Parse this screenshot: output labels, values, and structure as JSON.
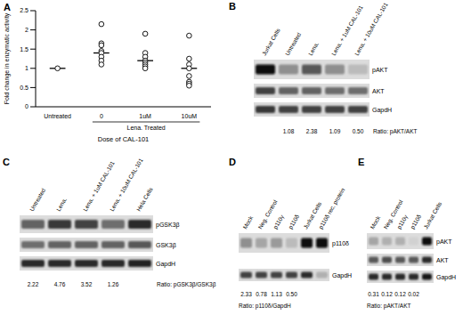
{
  "chart_data": {
    "type": "scatter",
    "title": "A",
    "y_label": "Fold change in enzymatic activity",
    "x_label": "Dose of CAL-101",
    "categories": [
      "Untreated",
      "0",
      "1uM",
      "10uM"
    ],
    "values": [
      [
        1
      ],
      [
        2.15,
        1.65,
        1.6,
        1.45,
        1.4,
        1.3,
        1.2,
        1.1
      ],
      [
        1.9,
        1.4,
        1.3,
        1.2,
        1.15,
        1.1,
        1.05,
        1.0
      ],
      [
        1.85,
        1.25,
        1.1,
        1.0,
        0.8,
        0.65,
        0.6,
        0.55
      ]
    ],
    "medians": [
      1,
      1.4,
      1.2,
      1.0
    ],
    "color": "#000000",
    "marker": "circle",
    "ylim": [
      0,
      2.5
    ],
    "yticks": [
      0,
      0.5,
      1,
      1.5,
      2,
      2.5
    ],
    "annotations": [
      {
        "text": "Lena. Treated",
        "from": "0",
        "to": "10uM"
      }
    ]
  },
  "blots": [
    {
      "title": "B",
      "lanes": [
        "Jurkat Cells",
        "Untreated",
        "Lena.",
        "Lena. + 1uM CAL-101",
        "Lena. + 10uM CAL-101"
      ],
      "rows": [
        {
          "label": "pAKT",
          "intensity": [
            0.95,
            0.35,
            0.6,
            0.35,
            0.15
          ]
        },
        {
          "label": "AKT",
          "intensity": [
            0.7,
            0.55,
            0.55,
            0.5,
            0.5
          ]
        },
        {
          "label": "GapdH",
          "intensity": [
            0.75,
            0.7,
            0.7,
            0.7,
            0.7
          ]
        }
      ],
      "ratios": [
        null,
        "1.08",
        "2.38",
        "1.09",
        "0.50"
      ],
      "ratio_label": "Ratio: pAKT/AKT"
    },
    {
      "title": "C",
      "lanes": [
        "Untreated",
        "Lena.",
        "Lena. + 1uM CAL-101",
        "Lena. + 10uM CAL-101",
        "Hela Cells"
      ],
      "rows": [
        {
          "label": "pGSK3β",
          "intensity": [
            0.55,
            0.75,
            0.7,
            0.5,
            0.8
          ]
        },
        {
          "label": "GSK3β",
          "intensity": [
            0.5,
            0.55,
            0.55,
            0.55,
            0.6
          ]
        },
        {
          "label": "GapdH",
          "intensity": [
            0.8,
            0.8,
            0.8,
            0.8,
            0.85
          ]
        }
      ],
      "ratios": [
        "2.22",
        "4.76",
        "3.52",
        "1.26",
        null
      ],
      "ratio_label": "Ratio: pGSK3β/GSK3β"
    },
    {
      "title": "D",
      "lanes": [
        "Mock",
        "Neg. Control",
        "p110γ",
        "p110δ",
        "Jurkat Cells",
        "p110δ rec. protein"
      ],
      "rows": [
        {
          "label": "p110δ",
          "intensity": [
            0.35,
            0.25,
            0.3,
            0.15,
            0.95,
            0.95
          ]
        },
        {
          "label": "GapdH",
          "intensity": [
            0.7,
            0.7,
            0.7,
            0.7,
            0.8,
            0.2
          ]
        }
      ],
      "ratios": [
        "2.33",
        "0.78",
        "1.13",
        "0.50",
        null,
        null
      ],
      "ratio_label": "Ratio: p110δ/GapdH"
    },
    {
      "title": "E",
      "lanes": [
        "Mock",
        "Neg. Control",
        "p110γ",
        "p110δ",
        "Jurkat Cells"
      ],
      "rows": [
        {
          "label": "pAKT",
          "intensity": [
            0.25,
            0.2,
            0.2,
            0.05,
            0.95
          ]
        },
        {
          "label": "AKT",
          "intensity": [
            0.6,
            0.65,
            0.6,
            0.6,
            0.8
          ]
        },
        {
          "label": "GapdH",
          "intensity": [
            0.8,
            0.8,
            0.8,
            0.8,
            0.9
          ]
        }
      ],
      "ratios": [
        "0.31",
        "0.12",
        "0.12",
        "0.02",
        null
      ],
      "ratio_label": "Ratio: pAKT/AKT"
    }
  ]
}
